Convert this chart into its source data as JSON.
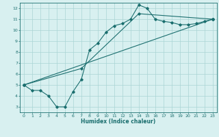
{
  "xlabel": "Humidex (Indice chaleur)",
  "bg_color": "#d8f0f0",
  "grid_color": "#aad4d4",
  "line_color": "#1a6e6e",
  "xlim": [
    -0.5,
    23.5
  ],
  "ylim": [
    2.5,
    12.5
  ],
  "xticks": [
    0,
    1,
    2,
    3,
    4,
    5,
    6,
    7,
    8,
    9,
    10,
    11,
    12,
    13,
    14,
    15,
    16,
    17,
    18,
    19,
    20,
    21,
    22,
    23
  ],
  "yticks": [
    3,
    4,
    5,
    6,
    7,
    8,
    9,
    10,
    11,
    12
  ],
  "line1_x": [
    0,
    1,
    2,
    3,
    4,
    5,
    6,
    7,
    8,
    9,
    10,
    11,
    12,
    13,
    14,
    15,
    16,
    17,
    18,
    19,
    20,
    21,
    22,
    23
  ],
  "line1_y": [
    5.0,
    4.5,
    4.5,
    4.0,
    3.0,
    3.0,
    4.4,
    5.5,
    8.2,
    8.8,
    9.8,
    10.4,
    10.6,
    11.0,
    12.3,
    12.0,
    11.0,
    10.8,
    10.7,
    10.5,
    10.5,
    10.6,
    10.8,
    11.0
  ],
  "line2_x": [
    0,
    23
  ],
  "line2_y": [
    5.0,
    11.0
  ],
  "line3_x": [
    0,
    7,
    14,
    23
  ],
  "line3_y": [
    5.0,
    6.5,
    11.5,
    11.0
  ]
}
